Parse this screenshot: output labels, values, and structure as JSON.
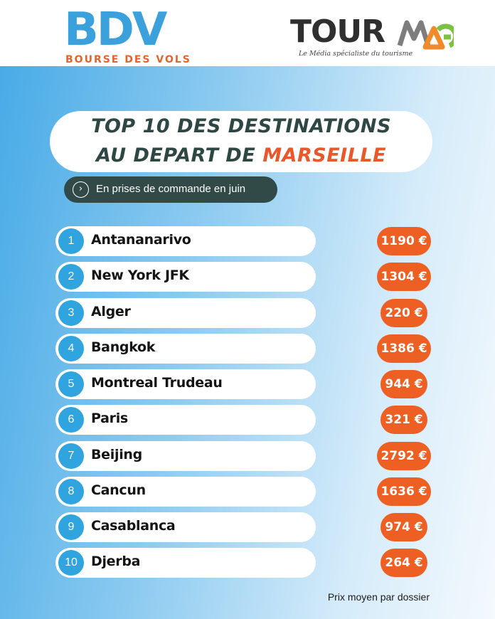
{
  "logos": {
    "bdv": {
      "letters": "BDV",
      "tagline": "BOURSE DES VOLS",
      "color": "#3aa1dd",
      "tagline_color": "#e8632a"
    },
    "tourmag": {
      "word": "TOUR",
      "tagline": "Le Média spécialiste du tourisme"
    }
  },
  "title": {
    "line1": "TOP 10 DES DESTINATIONS",
    "line2_prefix": "AU DEPART DE ",
    "line2_accent": "MARSEILLE"
  },
  "subtitle": {
    "icon": "chevron-right-icon",
    "text": "En prises de commande en juin"
  },
  "rows": [
    {
      "rank": "1",
      "destination": "Antananarivo",
      "price": "1190 €"
    },
    {
      "rank": "2",
      "destination": "New York JFK",
      "price": "1304 €"
    },
    {
      "rank": "3",
      "destination": "Alger",
      "price": "220 €"
    },
    {
      "rank": "4",
      "destination": "Bangkok",
      "price": "1386 €"
    },
    {
      "rank": "5",
      "destination": "Montreal Trudeau",
      "price": "944 €"
    },
    {
      "rank": "6",
      "destination": "Paris",
      "price": "321 €"
    },
    {
      "rank": "7",
      "destination": "Beijing",
      "price": "2792 €"
    },
    {
      "rank": "8",
      "destination": "Cancun",
      "price": "1636 €"
    },
    {
      "rank": "9",
      "destination": "Casablanca",
      "price": "974 €"
    },
    {
      "rank": "10",
      "destination": "Djerba",
      "price": "264 €"
    }
  ],
  "footnote": "Prix moyen par dossier",
  "colors": {
    "rank_badge": "#2fa4df",
    "price_pill": "#ee5f24",
    "title_text": "#2f4744",
    "title_accent": "#e8582a",
    "subtitle_pill": "#324a47"
  }
}
